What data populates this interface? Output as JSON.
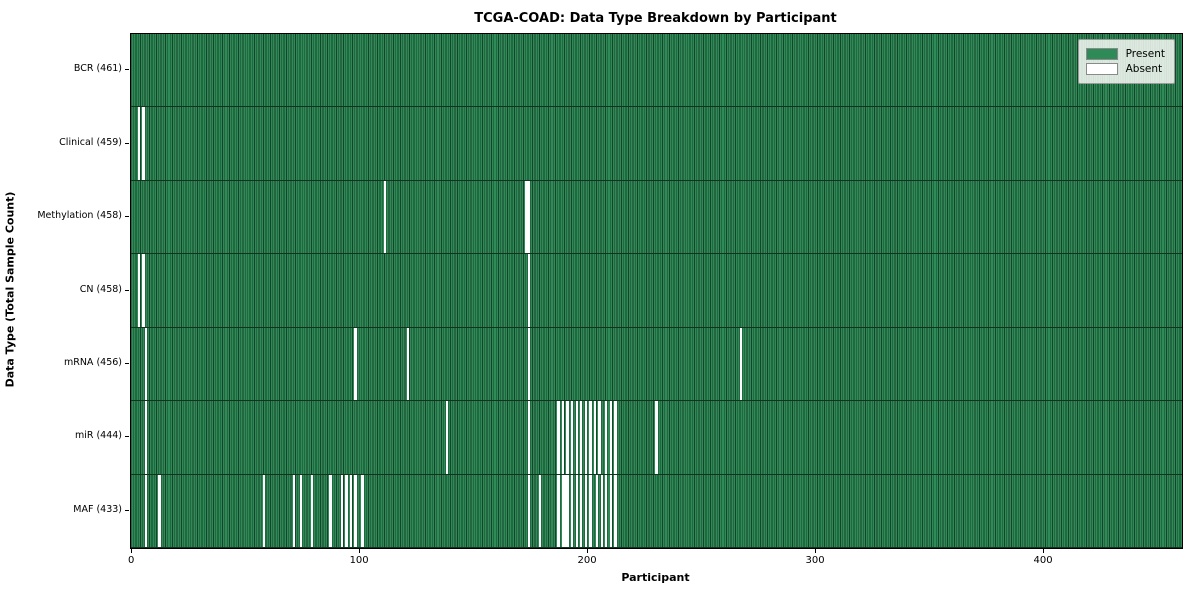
{
  "chart_data": {
    "type": "heatmap",
    "title": "TCGA-COAD: Data Type Breakdown by Participant",
    "xlabel": "Participant",
    "ylabel": "Data Type (Total Sample Count)",
    "n_participants": 461,
    "x_ticks": [
      0,
      100,
      200,
      300,
      400
    ],
    "legend_position": "upper right",
    "colors": {
      "present": "#2e8b57",
      "absent": "#ffffff",
      "cell_edge": "#17432a",
      "row_divider": "#14331f"
    },
    "legend": {
      "entries": [
        {
          "label": "Present",
          "color": "#2e8b57"
        },
        {
          "label": "Absent",
          "color": "#ffffff"
        }
      ]
    },
    "rows": [
      {
        "data_type": "BCR",
        "total": 461,
        "label": "BCR (461)",
        "absent_participants": []
      },
      {
        "data_type": "Clinical",
        "total": 459,
        "label": "Clinical (459)",
        "absent_participants": [
          3,
          5
        ]
      },
      {
        "data_type": "Methylation",
        "total": 458,
        "label": "Methylation (458)",
        "absent_participants": [
          111,
          173,
          174
        ]
      },
      {
        "data_type": "CN",
        "total": 458,
        "label": "CN (458)",
        "absent_participants": [
          3,
          5,
          174
        ]
      },
      {
        "data_type": "mRNA",
        "total": 456,
        "label": "mRNA (456)",
        "absent_participants": [
          6,
          98,
          121,
          174,
          267
        ]
      },
      {
        "data_type": "miR",
        "total": 444,
        "label": "miR (444)",
        "absent_participants": [
          6,
          138,
          174,
          187,
          189,
          191,
          193,
          195,
          197,
          199,
          201,
          203,
          205,
          208,
          210,
          212,
          230
        ]
      },
      {
        "data_type": "MAF",
        "total": 433,
        "label": "MAF (433)",
        "absent_participants": [
          6,
          12,
          58,
          71,
          74,
          79,
          87,
          92,
          94,
          96,
          98,
          101,
          174,
          179,
          187,
          189,
          190,
          191,
          193,
          195,
          197,
          199,
          201,
          204,
          206,
          208,
          210,
          212
        ]
      }
    ]
  }
}
